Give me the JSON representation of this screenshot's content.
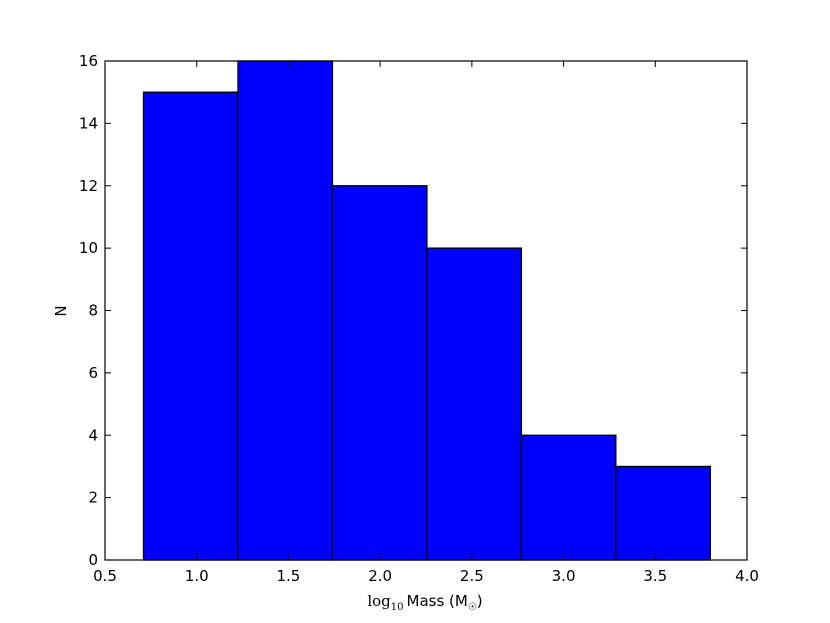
{
  "chart_data": {
    "type": "bar",
    "histogram": true,
    "bins": [
      {
        "x0": 0.71,
        "x1": 1.225,
        "count": 15
      },
      {
        "x0": 1.225,
        "x1": 1.74,
        "count": 16
      },
      {
        "x0": 1.74,
        "x1": 2.255,
        "count": 12
      },
      {
        "x0": 2.255,
        "x1": 2.77,
        "count": 10
      },
      {
        "x0": 2.77,
        "x1": 3.285,
        "count": 4
      },
      {
        "x0": 3.285,
        "x1": 3.8,
        "count": 3
      }
    ],
    "xlabel": {
      "prefix": "log",
      "subscript": "10",
      "main": "Mass (M",
      "sun_symbol": "☉",
      "suffix": ")"
    },
    "ylabel": "N",
    "xlim": [
      0.5,
      4.0
    ],
    "ylim": [
      0,
      16
    ],
    "xticks": [
      "0.5",
      "1.0",
      "1.5",
      "2.0",
      "2.5",
      "3.0",
      "3.5",
      "4.0"
    ],
    "yticks": [
      "0",
      "2",
      "4",
      "6",
      "8",
      "10",
      "12",
      "14",
      "16"
    ],
    "bar_color": "#0000ff",
    "edge_color": "#000000",
    "grid": false
  }
}
